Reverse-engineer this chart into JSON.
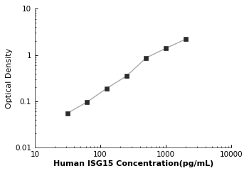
{
  "x": [
    31.25,
    62.5,
    125,
    250,
    500,
    1000,
    2000
  ],
  "y": [
    0.055,
    0.096,
    0.19,
    0.35,
    0.87,
    1.4,
    2.2
  ],
  "xlim": [
    10,
    10000
  ],
  "ylim": [
    0.01,
    10
  ],
  "xlabel": "Human ISG15 Concentration(pg/mL)",
  "ylabel": "Optical Density",
  "line_color": "#aaaaaa",
  "marker_color": "#2b2b2b",
  "marker": "s",
  "marker_size": 4,
  "line_width": 1.0,
  "xlabel_fontsize": 8,
  "ylabel_fontsize": 8,
  "tick_fontsize": 7.5,
  "background_color": "#ffffff",
  "xticks": [
    10,
    100,
    1000,
    10000
  ],
  "yticks": [
    0.01,
    0.1,
    1,
    10
  ]
}
